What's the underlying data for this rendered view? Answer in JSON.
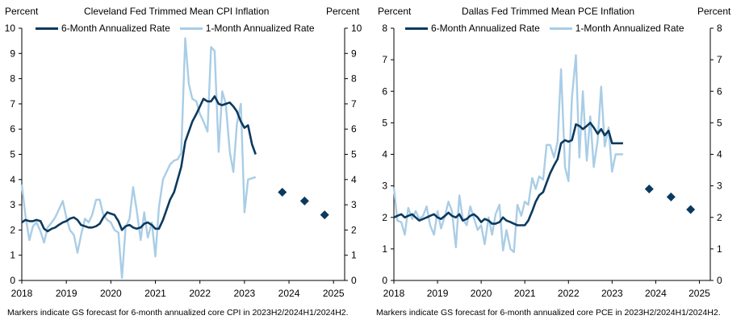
{
  "colors": {
    "six_month": "#0b3a5e",
    "one_month": "#a9cde6",
    "forecast": "#0b3a5e",
    "axis": "#000000"
  },
  "chart_data": [
    {
      "type": "line",
      "title": "Cleveland  Fed Trimmed  Mean CPI Inflation",
      "ylabel_left": "Percent",
      "ylabel_right": "Percent",
      "ylim": [
        0,
        10
      ],
      "yticks": [
        "0",
        "1",
        "2",
        "3",
        "4",
        "5",
        "6",
        "7",
        "8",
        "9",
        "10"
      ],
      "xlim": [
        2018,
        2025.25
      ],
      "xticks": [
        "2018",
        "2019",
        "2020",
        "2021",
        "2022",
        "2023",
        "2024",
        "2025"
      ],
      "legend": [
        "6-Month  Annualized Rate",
        "1-Month  Annualized Rate"
      ],
      "note": "Markers indicate GS  forecast for 6-month annualized core CPI  in 2023H2/2024H1/2024H2.",
      "series": [
        {
          "name": "6-Month  Annualized Rate",
          "x": [
            2018.0,
            2018.08,
            2018.17,
            2018.25,
            2018.33,
            2018.42,
            2018.5,
            2018.58,
            2018.67,
            2018.75,
            2018.83,
            2018.92,
            2019.0,
            2019.08,
            2019.17,
            2019.25,
            2019.33,
            2019.42,
            2019.5,
            2019.58,
            2019.67,
            2019.75,
            2019.83,
            2019.92,
            2020.0,
            2020.08,
            2020.17,
            2020.25,
            2020.33,
            2020.42,
            2020.5,
            2020.58,
            2020.67,
            2020.75,
            2020.83,
            2020.92,
            2021.0,
            2021.08,
            2021.17,
            2021.25,
            2021.33,
            2021.42,
            2021.5,
            2021.58,
            2021.67,
            2021.75,
            2021.83,
            2021.92,
            2022.0,
            2022.08,
            2022.17,
            2022.25,
            2022.33,
            2022.42,
            2022.5,
            2022.58,
            2022.67,
            2022.75,
            2022.83,
            2022.92,
            2023.0,
            2023.08,
            2023.17,
            2023.25
          ],
          "values": [
            2.3,
            2.4,
            2.35,
            2.35,
            2.4,
            2.35,
            2.05,
            1.95,
            2.05,
            2.1,
            2.2,
            2.3,
            2.35,
            2.45,
            2.5,
            2.4,
            2.2,
            2.15,
            2.1,
            2.1,
            2.15,
            2.25,
            2.5,
            2.7,
            2.65,
            2.6,
            2.35,
            2.0,
            2.15,
            2.2,
            2.1,
            2.05,
            2.1,
            2.25,
            2.3,
            2.2,
            2.05,
            2.05,
            2.4,
            2.8,
            3.2,
            3.5,
            4.0,
            4.5,
            5.5,
            5.9,
            6.3,
            6.6,
            6.9,
            7.2,
            7.1,
            7.1,
            7.3,
            7.0,
            6.95,
            7.0,
            7.05,
            6.9,
            6.7,
            6.3,
            6.05,
            6.15,
            5.4,
            5.0
          ]
        },
        {
          "name": "1-Month  Annualized Rate",
          "x": [
            2018.0,
            2018.08,
            2018.17,
            2018.25,
            2018.33,
            2018.42,
            2018.5,
            2018.58,
            2018.67,
            2018.75,
            2018.83,
            2018.92,
            2019.0,
            2019.08,
            2019.17,
            2019.25,
            2019.33,
            2019.42,
            2019.5,
            2019.58,
            2019.67,
            2019.75,
            2019.83,
            2019.92,
            2020.0,
            2020.08,
            2020.17,
            2020.25,
            2020.33,
            2020.42,
            2020.5,
            2020.58,
            2020.67,
            2020.75,
            2020.83,
            2020.92,
            2021.0,
            2021.08,
            2021.17,
            2021.25,
            2021.33,
            2021.42,
            2021.5,
            2021.58,
            2021.67,
            2021.75,
            2021.83,
            2021.92,
            2022.0,
            2022.08,
            2022.17,
            2022.25,
            2022.33,
            2022.42,
            2022.5,
            2022.58,
            2022.67,
            2022.75,
            2022.83,
            2022.92,
            2023.0,
            2023.08,
            2023.17,
            2023.25
          ],
          "values": [
            3.8,
            2.6,
            1.6,
            2.15,
            2.3,
            1.95,
            1.5,
            2.1,
            2.3,
            2.5,
            2.8,
            3.15,
            2.5,
            2.0,
            1.8,
            1.1,
            1.8,
            2.45,
            2.3,
            2.6,
            3.2,
            3.2,
            2.6,
            2.4,
            2.3,
            2.0,
            1.9,
            0.1,
            2.1,
            2.45,
            3.7,
            2.8,
            1.6,
            2.7,
            1.7,
            2.3,
            0.95,
            2.9,
            4.0,
            4.3,
            4.6,
            4.75,
            4.8,
            5.05,
            9.6,
            7.8,
            7.2,
            7.1,
            6.6,
            6.3,
            5.9,
            9.25,
            9.1,
            5.1,
            7.5,
            7.0,
            5.1,
            4.3,
            6.2,
            7.0,
            2.7,
            4.0,
            4.05,
            4.1
          ]
        }
      ],
      "forecast": {
        "x": [
          2023.85,
          2024.35,
          2024.8
        ],
        "values": [
          3.5,
          3.15,
          2.6
        ]
      }
    },
    {
      "type": "line",
      "title": "Dallas Fed Trimmed  Mean PCE Inflation",
      "ylabel_left": "Percent",
      "ylabel_right": "Percent",
      "ylim": [
        0,
        8
      ],
      "yticks": [
        "0",
        "1",
        "2",
        "3",
        "4",
        "5",
        "6",
        "7",
        "8"
      ],
      "xlim": [
        2018,
        2025.25
      ],
      "xticks": [
        "2018",
        "2019",
        "2020",
        "2021",
        "2022",
        "2023",
        "2024",
        "2025"
      ],
      "legend": [
        "6-Month  Annualized Rate",
        "1-Month  Annualized Rate"
      ],
      "note": "Markers indicate GS  forecast for 6-month annualized core PCE  in 2023H2/2024H1/2024H2.",
      "series": [
        {
          "name": "6-Month  Annualized Rate",
          "x": [
            2018.0,
            2018.08,
            2018.17,
            2018.25,
            2018.33,
            2018.42,
            2018.5,
            2018.58,
            2018.67,
            2018.75,
            2018.83,
            2018.92,
            2019.0,
            2019.08,
            2019.17,
            2019.25,
            2019.33,
            2019.42,
            2019.5,
            2019.58,
            2019.67,
            2019.75,
            2019.83,
            2019.92,
            2020.0,
            2020.08,
            2020.17,
            2020.25,
            2020.33,
            2020.42,
            2020.5,
            2020.58,
            2020.67,
            2020.75,
            2020.83,
            2020.92,
            2021.0,
            2021.08,
            2021.17,
            2021.25,
            2021.33,
            2021.42,
            2021.5,
            2021.58,
            2021.67,
            2021.75,
            2021.83,
            2021.92,
            2022.0,
            2022.08,
            2022.17,
            2022.25,
            2022.33,
            2022.42,
            2022.5,
            2022.58,
            2022.67,
            2022.75,
            2022.83,
            2022.92,
            2023.0,
            2023.08,
            2023.17,
            2023.25
          ],
          "values": [
            2.0,
            2.05,
            2.1,
            2.0,
            2.05,
            2.1,
            2.0,
            1.9,
            1.95,
            2.0,
            2.05,
            2.1,
            2.0,
            1.95,
            2.05,
            2.15,
            2.05,
            2.0,
            2.1,
            1.9,
            1.95,
            2.05,
            2.1,
            2.0,
            1.85,
            1.95,
            1.9,
            1.8,
            1.8,
            1.85,
            2.0,
            1.9,
            1.85,
            1.8,
            1.75,
            1.75,
            1.75,
            1.9,
            2.2,
            2.5,
            2.7,
            2.8,
            3.1,
            3.4,
            3.65,
            3.85,
            4.35,
            4.45,
            4.4,
            4.45,
            4.95,
            4.9,
            4.8,
            4.9,
            5.0,
            4.85,
            4.65,
            4.8,
            4.6,
            4.75,
            4.35,
            4.35,
            4.35,
            4.35
          ]
        },
        {
          "name": "1-Month  Annualized Rate",
          "x": [
            2018.0,
            2018.08,
            2018.17,
            2018.25,
            2018.33,
            2018.42,
            2018.5,
            2018.58,
            2018.67,
            2018.75,
            2018.83,
            2018.92,
            2019.0,
            2019.08,
            2019.17,
            2019.25,
            2019.33,
            2019.42,
            2019.5,
            2019.58,
            2019.67,
            2019.75,
            2019.83,
            2019.92,
            2020.0,
            2020.08,
            2020.17,
            2020.25,
            2020.33,
            2020.42,
            2020.5,
            2020.58,
            2020.67,
            2020.75,
            2020.83,
            2020.92,
            2021.0,
            2021.08,
            2021.17,
            2021.25,
            2021.33,
            2021.42,
            2021.5,
            2021.58,
            2021.67,
            2021.75,
            2021.83,
            2021.92,
            2022.0,
            2022.08,
            2022.17,
            2022.25,
            2022.33,
            2022.42,
            2022.5,
            2022.58,
            2022.67,
            2022.75,
            2022.83,
            2022.92,
            2023.0,
            2023.08,
            2023.17,
            2023.25
          ],
          "values": [
            2.95,
            1.9,
            1.85,
            1.45,
            2.3,
            1.95,
            2.2,
            1.95,
            2.05,
            2.35,
            1.75,
            1.45,
            2.2,
            1.65,
            2.05,
            2.5,
            2.2,
            1.05,
            2.7,
            1.95,
            1.75,
            2.35,
            2.0,
            1.6,
            1.75,
            1.15,
            2.0,
            1.45,
            2.1,
            2.4,
            0.95,
            1.6,
            1.0,
            0.9,
            2.4,
            2.05,
            2.5,
            2.4,
            3.25,
            2.9,
            3.3,
            3.2,
            4.3,
            4.3,
            3.9,
            4.4,
            6.7,
            3.6,
            3.15,
            5.8,
            7.15,
            3.9,
            6.0,
            3.8,
            5.2,
            3.6,
            4.45,
            6.15,
            4.25,
            4.85,
            3.45,
            4.0,
            4.0,
            4.0
          ]
        }
      ],
      "forecast": {
        "x": [
          2023.85,
          2024.35,
          2024.8
        ],
        "values": [
          2.9,
          2.65,
          2.25
        ]
      }
    }
  ]
}
